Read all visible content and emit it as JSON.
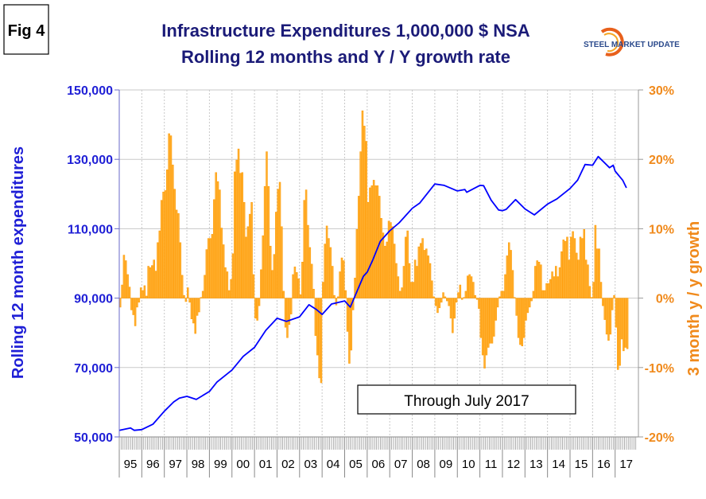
{
  "figure_label": "Fig 4",
  "logo_text": "STEEL MARKET UPDATE",
  "chart_data": {
    "type": "bar+line",
    "title": [
      "Infrastructure Expenditures 1,000,000 $ NSA",
      "Rolling 12 months and Y / Y growth rate"
    ],
    "annotation": "Through July 2017",
    "ylabel_left": "Rolling 12 month expenditures",
    "ylabel_right": "3 month y / y growth",
    "ylim_left": [
      50000,
      150000
    ],
    "ylim_right": [
      -20,
      30
    ],
    "yticks_left": [
      "150,000",
      "130,000",
      "110,000",
      "90,000",
      "70,000",
      "50,000"
    ],
    "yticks_right": [
      "30%",
      "20%",
      "10%",
      "0%",
      "-10%",
      "-20%"
    ],
    "xticks": [
      "95",
      "96",
      "97",
      "98",
      "99",
      "00",
      "01",
      "02",
      "03",
      "04",
      "05",
      "06",
      "07",
      "08",
      "09",
      "10",
      "11",
      "12",
      "13",
      "14",
      "15",
      "16",
      "17"
    ],
    "grid": true,
    "colors": {
      "line": "#0000ff",
      "bars": "#ff9900",
      "left_axis": "#1f1fd6",
      "right_axis": "#f08a1c",
      "title": "#1b1b78"
    },
    "line_series": {
      "axis": "left",
      "points": [
        [
          "1995-01",
          51900
        ],
        [
          "1995-07",
          52600
        ],
        [
          "1995-09",
          51900
        ],
        [
          "1996-01",
          52100
        ],
        [
          "1996-07",
          53700
        ],
        [
          "1997-01",
          57400
        ],
        [
          "1997-06",
          60100
        ],
        [
          "1997-09",
          61200
        ],
        [
          "1998-01",
          61700
        ],
        [
          "1998-06",
          60800
        ],
        [
          "1999-01",
          63100
        ],
        [
          "1999-05",
          65800
        ],
        [
          "2000-01",
          69300
        ],
        [
          "2000-07",
          73200
        ],
        [
          "2001-01",
          75800
        ],
        [
          "2001-07",
          80700
        ],
        [
          "2002-01",
          84200
        ],
        [
          "2002-06",
          83300
        ],
        [
          "2003-01",
          84600
        ],
        [
          "2003-06",
          88100
        ],
        [
          "2003-10",
          86700
        ],
        [
          "2004-01",
          85300
        ],
        [
          "2004-06",
          88300
        ],
        [
          "2005-01",
          89200
        ],
        [
          "2005-04",
          87400
        ],
        [
          "2005-11",
          96300
        ],
        [
          "2006-01",
          97500
        ],
        [
          "2006-04",
          101000
        ],
        [
          "2006-08",
          106400
        ],
        [
          "2007-01",
          109400
        ],
        [
          "2007-06",
          111700
        ],
        [
          "2008-01",
          115900
        ],
        [
          "2008-05",
          117400
        ],
        [
          "2009-01",
          122900
        ],
        [
          "2009-06",
          122500
        ],
        [
          "2010-01",
          120900
        ],
        [
          "2010-05",
          121300
        ],
        [
          "2010-06",
          120500
        ],
        [
          "2011-01",
          122500
        ],
        [
          "2011-03",
          122400
        ],
        [
          "2011-07",
          118200
        ],
        [
          "2011-11",
          115400
        ],
        [
          "2012-01",
          115200
        ],
        [
          "2012-03",
          115600
        ],
        [
          "2012-08",
          118400
        ],
        [
          "2013-01",
          115700
        ],
        [
          "2013-06",
          114000
        ],
        [
          "2014-01",
          117100
        ],
        [
          "2014-06",
          118600
        ],
        [
          "2015-01",
          121600
        ],
        [
          "2015-05",
          124000
        ],
        [
          "2015-09",
          128500
        ],
        [
          "2016-01",
          128300
        ],
        [
          "2016-04",
          130800
        ],
        [
          "2016-10",
          127600
        ],
        [
          "2016-12",
          128300
        ],
        [
          "2017-01",
          126600
        ],
        [
          "2017-05",
          124000
        ],
        [
          "2017-07",
          121800
        ]
      ]
    },
    "bar_series": {
      "axis": "right",
      "unit": "%",
      "by_year": [
        {
          "year": 1995,
          "values": [
            -1.3,
            1.9,
            6.2,
            5.4,
            3.4,
            1.6,
            -1.7,
            -2.4,
            -4.0,
            -1.3,
            -0.6,
            1.5
          ]
        },
        {
          "year": 1996,
          "values": [
            1.1,
            1.8,
            0.3,
            4.6,
            4.4,
            4.7,
            5.5,
            3.9,
            8.0,
            9.7,
            14.1,
            15.3
          ]
        },
        {
          "year": 1997,
          "values": [
            15.5,
            18.5,
            23.7,
            23.4,
            19.2,
            15.7,
            12.7,
            12.2,
            8.0,
            3.3,
            0.4,
            -0.5
          ]
        },
        {
          "year": 1998,
          "values": [
            1.5,
            -0.6,
            -3.0,
            -3.6,
            -5.1,
            -2.5,
            -2.0,
            0.1,
            1.0,
            3.3,
            7.0,
            8.6
          ]
        },
        {
          "year": 1999,
          "values": [
            8.6,
            9.2,
            14.2,
            18.1,
            16.8,
            15.6,
            10.1,
            7.7,
            4.4,
            3.8,
            1.1,
            2.7
          ]
        },
        {
          "year": 2000,
          "values": [
            6.4,
            18.2,
            19.9,
            21.5,
            18.0,
            18.1,
            13.8,
            8.8,
            10.3,
            12.1,
            13.8,
            3.4
          ]
        },
        {
          "year": 2001,
          "values": [
            -2.9,
            -3.2,
            -1.1,
            4.1,
            9.0,
            16.1,
            21.1,
            16.1,
            7.5,
            4.0,
            6.3,
            12.4
          ]
        },
        {
          "year": 2002,
          "values": [
            15.7,
            16.7,
            10.3,
            1.0,
            -4.2,
            -5.7,
            -3.8,
            -2.3,
            3.4,
            4.5,
            3.7,
            2.8
          ]
        },
        {
          "year": 2003,
          "values": [
            0.5,
            5.2,
            14.1,
            15.6,
            10.5,
            7.3,
            4.9,
            1.3,
            -5.4,
            -8.2,
            -11.5,
            -12.2
          ]
        },
        {
          "year": 2004,
          "values": [
            2.3,
            7.8,
            10.4,
            8.6,
            7.3,
            4.6,
            0.4,
            -1.0,
            0.2,
            3.8,
            5.8,
            5.4
          ]
        },
        {
          "year": 2005,
          "values": [
            1.1,
            -4.8,
            -9.4,
            -7.5,
            -1.7,
            2.9,
            9.9,
            14.7,
            21.1,
            27.0,
            24.8,
            22.6
          ]
        },
        {
          "year": 2006,
          "values": [
            13.8,
            15.9,
            16.2,
            17.0,
            16.2,
            16.2,
            14.7,
            11.5,
            9.4,
            7.5,
            8.1,
            11.1
          ]
        },
        {
          "year": 2007,
          "values": [
            10.9,
            10.3,
            7.8,
            5.0,
            3.1,
            1.0,
            1.5,
            4.6,
            8.8,
            9.7,
            5.0,
            2.3
          ]
        },
        {
          "year": 2008,
          "values": [
            2.3,
            5.5,
            4.6,
            7.4,
            7.9,
            8.6,
            6.9,
            7.1,
            6.1,
            5.0,
            2.5,
            0.2
          ]
        },
        {
          "year": 2009,
          "values": [
            -1.1,
            -2.1,
            -1.4,
            -0.6,
            0.8,
            0.2,
            -0.4,
            -1.1,
            -2.9,
            -5.0,
            -2.9,
            -0.6
          ]
        },
        {
          "year": 2010,
          "values": [
            0.8,
            1.9,
            -0.2,
            0.1,
            1.0,
            3.2,
            3.4,
            3.1,
            2.3,
            0.4,
            -0.2,
            -1.5
          ]
        },
        {
          "year": 2011,
          "values": [
            -5.7,
            -8.2,
            -10.1,
            -8.2,
            -7.1,
            -6.5,
            -6.5,
            -5.5,
            -3.2,
            -1.3,
            0.2,
            1.0
          ]
        },
        {
          "year": 2012,
          "values": [
            1.0,
            3.4,
            6.1,
            8.0,
            6.9,
            4.0,
            0.1,
            -2.5,
            -5.7,
            -6.7,
            -6.9,
            -5.7
          ]
        },
        {
          "year": 2013,
          "values": [
            -3.2,
            -2.1,
            -1.3,
            -0.4,
            1.0,
            4.6,
            5.4,
            5.2,
            4.8,
            1.1,
            1.1,
            2.1
          ]
        },
        {
          "year": 2014,
          "values": [
            2.1,
            2.7,
            3.8,
            3.1,
            4.6,
            3.1,
            4.4,
            6.7,
            8.4,
            8.2,
            8.8,
            5.5
          ]
        },
        {
          "year": 2015,
          "values": [
            8.8,
            9.6,
            8.6,
            6.5,
            5.5,
            8.8,
            8.6,
            9.9,
            5.5,
            4.8,
            1.7,
            0.1
          ]
        },
        {
          "year": 2016,
          "values": [
            2.3,
            10.5,
            7.1,
            7.1,
            2.3,
            -1.1,
            -3.1,
            -5.2,
            -6.1,
            -5.2,
            -1.7,
            0.4
          ]
        },
        {
          "year": 2017,
          "values": [
            -4.2,
            -10.3,
            -9.7,
            -5.9,
            -7.6,
            -7.1,
            -7.3
          ]
        }
      ]
    }
  }
}
